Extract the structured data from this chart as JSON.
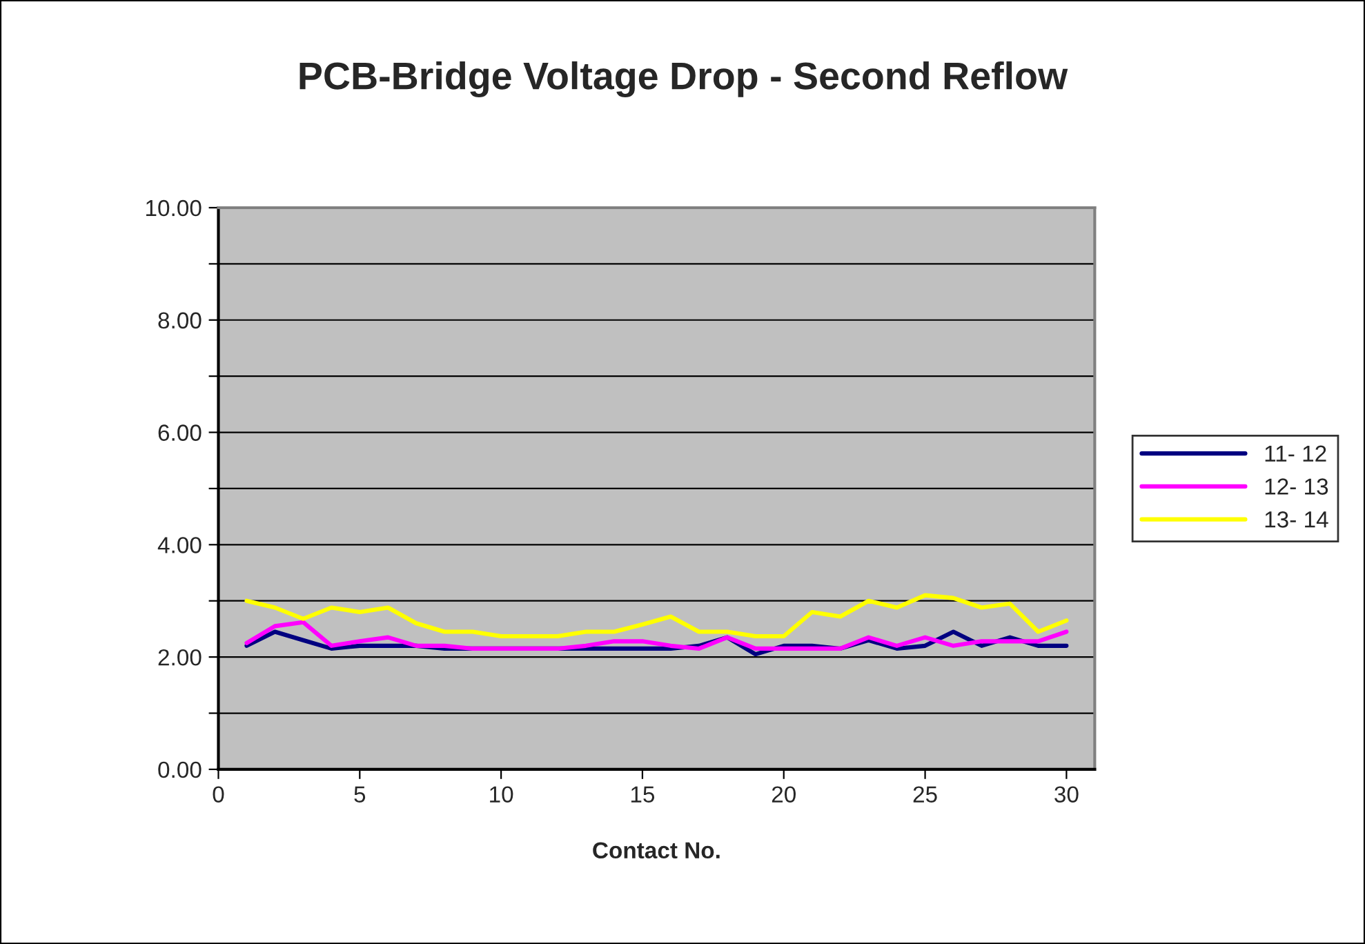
{
  "chart_data": {
    "type": "line",
    "title": "PCB-Bridge Voltage Drop - Second Reflow",
    "xlabel": "Contact No.",
    "x": [
      1,
      2,
      3,
      4,
      5,
      6,
      7,
      8,
      9,
      10,
      11,
      12,
      13,
      14,
      15,
      16,
      17,
      18,
      19,
      20,
      21,
      22,
      23,
      24,
      25,
      26,
      27,
      28,
      29,
      30
    ],
    "series": [
      {
        "name": "11- 12",
        "color": "#000080",
        "values": [
          2.2,
          2.45,
          2.3,
          2.15,
          2.2,
          2.2,
          2.2,
          2.15,
          2.15,
          2.15,
          2.15,
          2.15,
          2.15,
          2.15,
          2.15,
          2.15,
          2.2,
          2.35,
          2.05,
          2.2,
          2.2,
          2.15,
          2.3,
          2.15,
          2.2,
          2.45,
          2.2,
          2.35,
          2.2,
          2.2
        ]
      },
      {
        "name": "12- 13",
        "color": "#ff00ff",
        "values": [
          2.25,
          2.55,
          2.62,
          2.2,
          2.28,
          2.35,
          2.2,
          2.2,
          2.15,
          2.15,
          2.15,
          2.15,
          2.2,
          2.28,
          2.28,
          2.2,
          2.15,
          2.35,
          2.15,
          2.15,
          2.15,
          2.15,
          2.35,
          2.2,
          2.35,
          2.2,
          2.28,
          2.28,
          2.28,
          2.45
        ]
      },
      {
        "name": "13- 14",
        "color": "#ffff00",
        "values": [
          3.0,
          2.88,
          2.68,
          2.88,
          2.8,
          2.88,
          2.6,
          2.45,
          2.45,
          2.37,
          2.37,
          2.37,
          2.45,
          2.45,
          2.58,
          2.72,
          2.45,
          2.45,
          2.37,
          2.37,
          2.8,
          2.72,
          3.0,
          2.88,
          3.1,
          3.05,
          2.88,
          2.95,
          2.45,
          2.65
        ]
      }
    ],
    "xlim": [
      0,
      31
    ],
    "xticks": [
      0,
      5,
      10,
      15,
      20,
      25,
      30
    ],
    "ylim": [
      0,
      10
    ],
    "yticks": [
      {
        "value": 0,
        "label": "0.00"
      },
      {
        "value": 1,
        "label": null
      },
      {
        "value": 2,
        "label": "2.00"
      },
      {
        "value": 3,
        "label": null
      },
      {
        "value": 4,
        "label": "4.00"
      },
      {
        "value": 5,
        "label": null
      },
      {
        "value": 6,
        "label": "6.00"
      },
      {
        "value": 7,
        "label": null
      },
      {
        "value": 8,
        "label": "8.00"
      },
      {
        "value": 9,
        "label": null
      },
      {
        "value": 10,
        "label": "10.00"
      }
    ],
    "grid": "y",
    "legend": "right",
    "marker": "none",
    "line_style": "solid"
  }
}
